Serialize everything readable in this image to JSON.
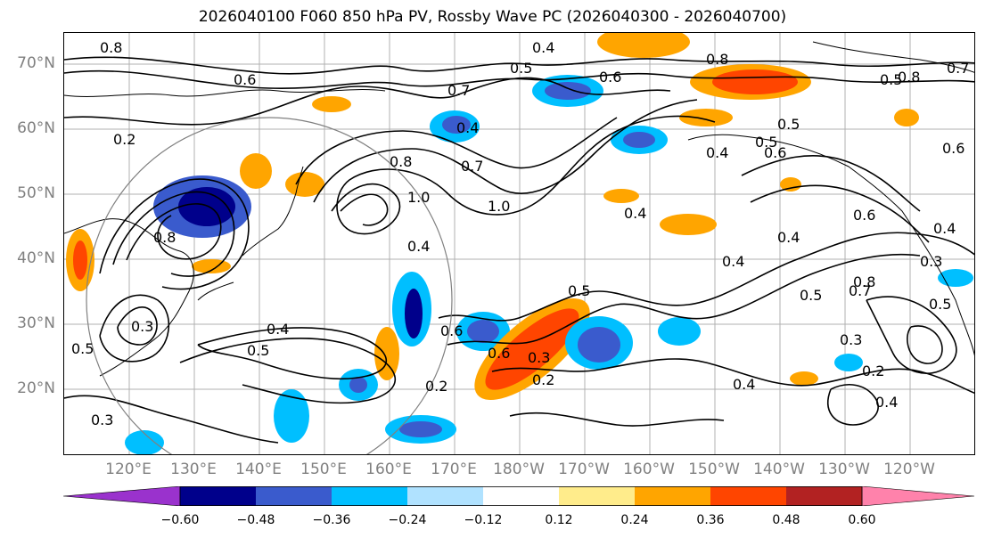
{
  "title": "2026040100 F060 850 hPa PV, Rossby Wave PC (2026040300 - 2026040700)",
  "latitude_labels": [
    "70°N",
    "60°N",
    "50°N",
    "40°N",
    "30°N",
    "20°N"
  ],
  "longitude_labels": [
    "120°E",
    "130°E",
    "140°E",
    "150°E",
    "160°E",
    "170°E",
    "180°W",
    "170°W",
    "160°W",
    "150°W",
    "140°W",
    "130°W",
    "120°W"
  ],
  "colorbar": {
    "colors": [
      "#9a32cd",
      "#00008b",
      "#3a5bcd",
      "#00bfff",
      "#b0e2ff",
      "#ffffff",
      "#ffec8b",
      "#ffa500",
      "#ff4500",
      "#b22222",
      "#ff82ab"
    ],
    "ticks": [
      "−0.60",
      "−0.48",
      "−0.36",
      "−0.24",
      "−0.12",
      "0.12",
      "0.24",
      "0.36",
      "0.48",
      "0.60"
    ]
  },
  "contour_labels": [
    "0.8",
    "0.6",
    "0.4",
    "0.5",
    "0.7",
    "0.6",
    "0.8",
    "0.5",
    "0.5",
    "0.7",
    "0.4",
    "0.2",
    "0.4",
    "0.7",
    "0.8",
    "1.0",
    "1.0",
    "0.4",
    "0.4",
    "0.5",
    "0.6",
    "0.4",
    "0.6",
    "0.4",
    "0.5",
    "0.8",
    "0.4",
    "0.3",
    "0.5",
    "0.6",
    "0.6",
    "0.3",
    "0.2",
    "0.4",
    "0.5",
    "0.4",
    "0.3",
    "0.2",
    "0.4",
    "0.2",
    "0.3",
    "0.8",
    "0.3",
    "0.5",
    "0.7",
    "0.5",
    "0.8",
    "0.6"
  ]
}
